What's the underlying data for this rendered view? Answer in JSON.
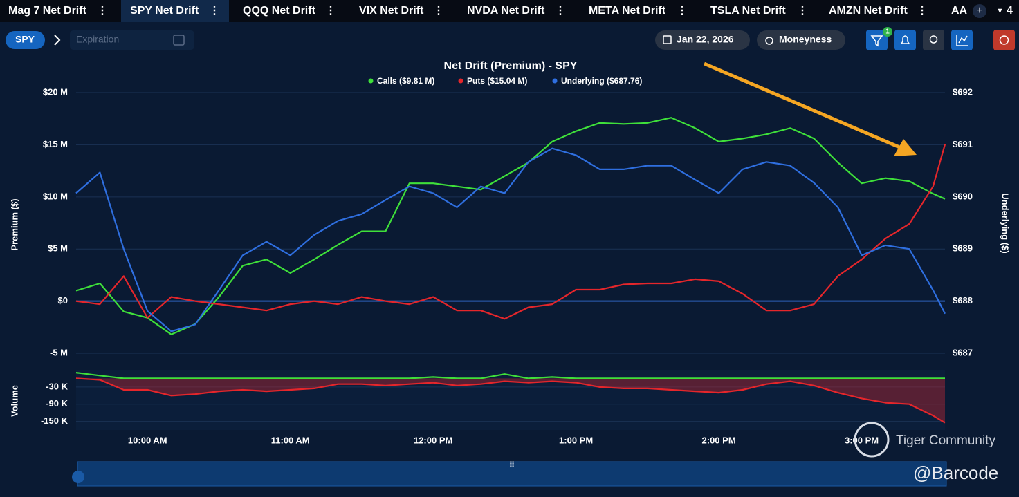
{
  "tabs": [
    "Mag 7 Net Drift",
    "SPY Net Drift",
    "QQQ Net Drift",
    "VIX Net Drift",
    "NVDA Net Drift",
    "META Net Drift",
    "TSLA Net Drift",
    "AMZN Net Drift",
    "AA"
  ],
  "tab_add": "+",
  "tab_count": "4",
  "toolbar": {
    "symbol": "SPY",
    "expiration_placeholder": "Expiration",
    "date": "Jan 22, 2026",
    "moneyness": "Moneyness",
    "filter_badge": "1"
  },
  "watermarks": [
    "Tiger Community",
    "@Barcode"
  ],
  "chart_data": [
    {
      "type": "line",
      "title": "Net Drift (Premium) - SPY",
      "ylabel": "Premium ($)",
      "y2label": "Underlying ($)",
      "x": [
        570,
        580,
        590,
        600,
        610,
        620,
        630,
        640,
        650,
        660,
        670,
        680,
        690,
        700,
        710,
        720,
        730,
        740,
        750,
        760,
        770,
        780,
        790,
        800,
        810,
        820,
        830,
        840,
        850,
        860,
        870,
        880,
        890,
        900,
        910,
        920,
        930,
        935
      ],
      "xlim": [
        570,
        935
      ],
      "xticks": [
        {
          "value": 600,
          "label": "10:00 AM"
        },
        {
          "value": 660,
          "label": "11:00 AM"
        },
        {
          "value": 720,
          "label": "12:00 PM"
        },
        {
          "value": 780,
          "label": "1:00 PM"
        },
        {
          "value": 840,
          "label": "2:00 PM"
        },
        {
          "value": 900,
          "label": "3:00 PM"
        }
      ],
      "ylim": [
        -6.5,
        20.5
      ],
      "yticks": [
        {
          "value": 20,
          "label": "$20 M"
        },
        {
          "value": 15,
          "label": "$15 M"
        },
        {
          "value": 10,
          "label": "$10 M"
        },
        {
          "value": 5,
          "label": "$5 M"
        },
        {
          "value": 0,
          "label": "$0"
        },
        {
          "value": -5,
          "label": "-5 M"
        }
      ],
      "y2lim": [
        686.7,
        692.1
      ],
      "y2ticks": [
        {
          "value": 692,
          "label": "$692"
        },
        {
          "value": 691,
          "label": "$691"
        },
        {
          "value": 690,
          "label": "$690"
        },
        {
          "value": 689,
          "label": "$689"
        },
        {
          "value": 688,
          "label": "$688"
        },
        {
          "value": 687,
          "label": "$687"
        }
      ],
      "grid": true,
      "series": [
        {
          "name": "Calls ($9.81 M)",
          "color": "#3fe03a",
          "values": [
            1.0,
            1.7,
            -1,
            -1.6,
            -3.2,
            -2.2,
            0.4,
            3.4,
            4,
            2.7,
            4,
            5.4,
            6.7,
            6.7,
            11.3,
            11.3,
            11,
            10.7,
            12,
            13.3,
            15.3,
            16.3,
            17.1,
            17,
            17.1,
            17.6,
            16.6,
            15.3,
            15.6,
            16,
            16.6,
            15.6,
            13.3,
            11.3,
            11.8,
            11.5,
            10.3,
            9.81
          ]
        },
        {
          "name": "Puts ($15.04 M)",
          "color": "#e5262b",
          "values": [
            0,
            -0.3,
            2.4,
            -1.6,
            0.4,
            0,
            -0.3,
            -0.6,
            -0.9,
            -0.3,
            0,
            -0.3,
            0.4,
            0,
            -0.3,
            0.4,
            -0.9,
            -0.9,
            -1.7,
            -0.6,
            -0.3,
            1.1,
            1.1,
            1.6,
            1.7,
            1.7,
            2.1,
            1.9,
            0.7,
            -0.9,
            -0.9,
            -0.3,
            2.4,
            4,
            6,
            7.4,
            11,
            15.04
          ]
        },
        {
          "name": "Underlying ($687.76)",
          "color": "#2f6fe0",
          "axis": "y2",
          "values": [
            690.07,
            690.47,
            689.0,
            687.81,
            687.42,
            687.55,
            688.21,
            688.88,
            689.14,
            688.88,
            689.27,
            689.54,
            689.67,
            689.94,
            690.2,
            690.07,
            689.8,
            690.2,
            690.07,
            690.67,
            690.93,
            690.8,
            690.53,
            690.53,
            690.6,
            690.6,
            690.33,
            690.07,
            690.53,
            690.67,
            690.6,
            690.27,
            689.8,
            688.88,
            689.07,
            689.0,
            688.21,
            687.76
          ]
        }
      ]
    },
    {
      "type": "area",
      "ylabel": "Volume",
      "x": [
        570,
        580,
        590,
        600,
        610,
        620,
        630,
        640,
        650,
        660,
        670,
        680,
        690,
        700,
        710,
        720,
        730,
        740,
        750,
        760,
        770,
        780,
        790,
        800,
        810,
        820,
        830,
        840,
        850,
        860,
        870,
        880,
        890,
        900,
        910,
        920,
        930,
        935
      ],
      "xlim": [
        570,
        935
      ],
      "ylim": [
        -180,
        30
      ],
      "yticks": [
        {
          "value": -30,
          "label": "-30 K"
        },
        {
          "value": -90,
          "label": "-90 K"
        },
        {
          "value": -150,
          "label": "-150 K"
        }
      ],
      "grid": true,
      "series": [
        {
          "color": "#e5262b",
          "values": [
            0,
            -5,
            -40,
            -40,
            -60,
            -55,
            -45,
            -40,
            -45,
            -40,
            -35,
            -20,
            -20,
            -25,
            -20,
            -15,
            -25,
            -20,
            -10,
            -15,
            -10,
            -15,
            -30,
            -35,
            -35,
            -40,
            -45,
            -50,
            -40,
            -20,
            -10,
            -25,
            -50,
            -70,
            -85,
            -90,
            -130,
            -155
          ]
        },
        {
          "color": "#3fe03a",
          "values": [
            20,
            10,
            0,
            0,
            0,
            0,
            0,
            0,
            0,
            0,
            0,
            0,
            0,
            0,
            0,
            5,
            0,
            0,
            15,
            0,
            5,
            0,
            0,
            0,
            0,
            0,
            0,
            0,
            0,
            0,
            0,
            0,
            0,
            0,
            0,
            0,
            0,
            0
          ]
        }
      ]
    }
  ]
}
